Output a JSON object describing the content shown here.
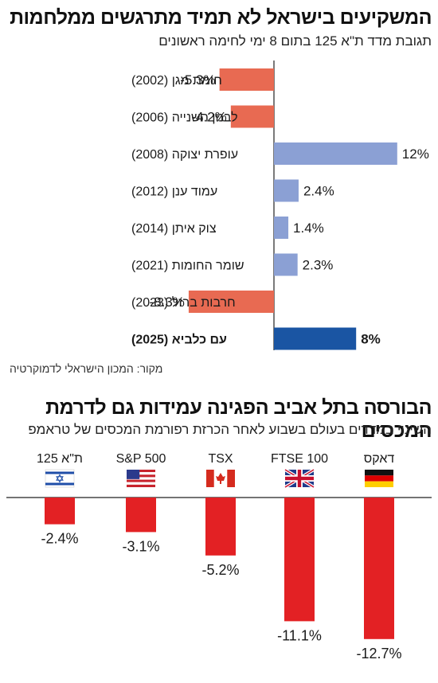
{
  "top": {
    "title": "המשקיעים בישראל לא תמיד מתרגשים ממלחמות",
    "subtitle": "תגובת מדד ת\"א 125 בתום 8 ימי לחימה ראשונים",
    "source": "מקור: המכון הישראלי לדמוקרטיה"
  },
  "bottom": {
    "title": "הבורסה בתל אביב הפגינה עמידות גם לדרמת המכסים",
    "subtitle": "השינוי במדדים בעולם בשבוע לאחר הכרזת רפורמת המכסים של טראמפ"
  },
  "colors": {
    "negative": "#e86a52",
    "positive": "#8ba0d4",
    "highlight": "#1a55a3",
    "bottom_bars": "#e32124",
    "axis": "#222222"
  },
  "chart_data": [
    {
      "type": "bar",
      "orientation": "horizontal",
      "categories": [
        "חומת מגן (2002)",
        "לבנון השנייה (2006)",
        "עופרת יצוקה (2008)",
        "עמוד ענן (2012)",
        "צוק איתן (2014)",
        "שומר החומות (2021)",
        "חרבות ברזל (2023)",
        "עם כלביא (2025)"
      ],
      "values": [
        -5.3,
        -4.2,
        12,
        2.4,
        1.4,
        2.3,
        -8.3,
        8
      ],
      "labels": [
        "-5.3%",
        "-4.2%",
        "12%",
        "2.4%",
        "1.4%",
        "2.3%",
        "-8.3%",
        "8%"
      ],
      "highlight_index": 7,
      "xlim": [
        -9,
        12.5
      ]
    },
    {
      "type": "bar",
      "orientation": "vertical",
      "categories": [
        "ת\"א 125",
        "S&P 500",
        "TSX",
        "FTSE 100",
        "דאקס"
      ],
      "flags": [
        "israel-flag-icon",
        "usa-flag-icon",
        "canada-flag-icon",
        "uk-flag-icon",
        "germany-flag-icon"
      ],
      "values": [
        -2.4,
        -3.1,
        -5.2,
        -11.1,
        -12.7
      ],
      "labels": [
        "-2.4%",
        "-3.1%",
        "-5.2%",
        "-11.1%",
        "-12.7%"
      ],
      "ylim": [
        -13,
        0
      ]
    }
  ]
}
